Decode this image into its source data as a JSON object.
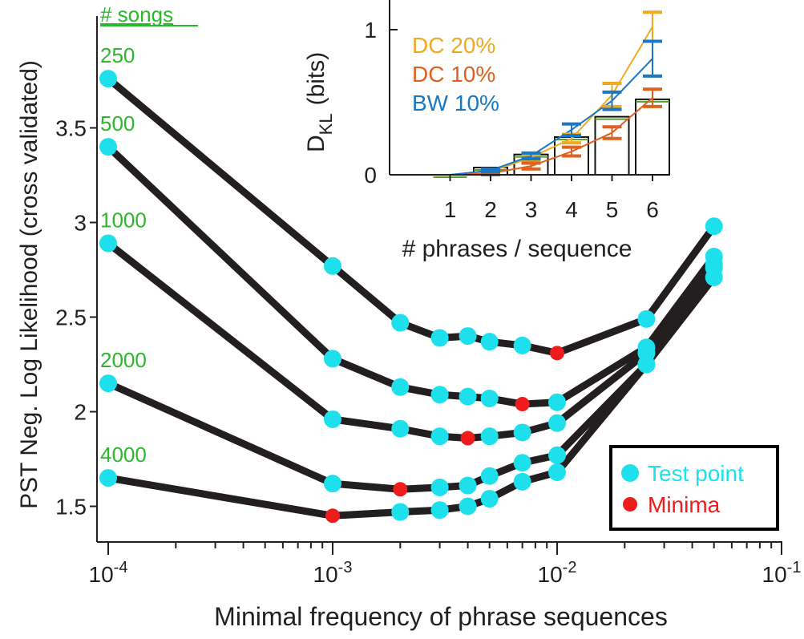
{
  "colors": {
    "line": "#231f20",
    "test_point": "#1ee0ec",
    "minima": "#ee1c1c",
    "song_label": "#2cb82c",
    "dc20": "#f0aa22",
    "dc10": "#e06020",
    "bw10": "#1a78c2",
    "inset_green": "#5aa02a"
  },
  "chart_data": [
    {
      "type": "line",
      "x_scale": "log",
      "xlabel": "Minimal frequency of phrase sequences",
      "ylabel": "PST Neg. Log Likelihood (cross validated)",
      "xlim": [
        0.0001,
        0.1
      ],
      "ylim": [
        1.3,
        4.02
      ],
      "x_ticks": [
        {
          "value": 0.0001,
          "base": "10",
          "exp": "-4"
        },
        {
          "value": 0.001,
          "base": "10",
          "exp": "-3"
        },
        {
          "value": 0.01,
          "base": "10",
          "exp": "-2"
        },
        {
          "value": 0.1,
          "base": "10",
          "exp": "-1"
        }
      ],
      "y_ticks": [
        "1.5",
        "2",
        "2.5",
        "3",
        "3.5"
      ],
      "y_tick_values": [
        1.5,
        2,
        2.5,
        3,
        3.5
      ],
      "series_label_header": "# songs",
      "series": [
        {
          "name": "250",
          "x": [
            0.0001,
            0.001,
            0.002,
            0.003,
            0.004,
            0.005,
            0.007,
            0.01,
            0.025,
            0.05
          ],
          "y": [
            3.76,
            2.77,
            2.47,
            2.39,
            2.4,
            2.37,
            2.35,
            2.31,
            2.49,
            2.98
          ],
          "min_index": 7
        },
        {
          "name": "500",
          "x": [
            0.0001,
            0.001,
            0.002,
            0.003,
            0.004,
            0.005,
            0.007,
            0.01,
            0.025,
            0.05
          ],
          "y": [
            3.4,
            2.28,
            2.13,
            2.09,
            2.08,
            2.07,
            2.04,
            2.05,
            2.34,
            2.82
          ],
          "min_index": 6
        },
        {
          "name": "1000",
          "x": [
            0.0001,
            0.001,
            0.002,
            0.003,
            0.004,
            0.005,
            0.007,
            0.01,
            0.025,
            0.05
          ],
          "y": [
            2.89,
            1.96,
            1.91,
            1.87,
            1.86,
            1.87,
            1.89,
            1.94,
            2.31,
            2.78
          ],
          "min_index": 4
        },
        {
          "name": "2000",
          "x": [
            0.0001,
            0.001,
            0.002,
            0.003,
            0.004,
            0.005,
            0.007,
            0.01,
            0.025,
            0.05
          ],
          "y": [
            2.15,
            1.62,
            1.59,
            1.6,
            1.61,
            1.66,
            1.73,
            1.77,
            2.25,
            2.76
          ],
          "min_index": 2
        },
        {
          "name": "4000",
          "x": [
            0.0001,
            0.001,
            0.002,
            0.003,
            0.004,
            0.005,
            0.007,
            0.01,
            0.025,
            0.05
          ],
          "y": [
            1.65,
            1.45,
            1.47,
            1.48,
            1.5,
            1.54,
            1.63,
            1.68,
            2.25,
            2.71
          ],
          "min_index": 1
        }
      ],
      "legend": {
        "position": "bottom-right",
        "entries": [
          "Test point",
          "Minima"
        ]
      }
    },
    {
      "type": "bar",
      "xlabel": "# phrases / sequence",
      "ylabel_main": "D",
      "ylabel_sub": "KL",
      "ylabel_unit": "(bits)",
      "categories": [
        "1",
        "2",
        "3",
        "4",
        "5",
        "6"
      ],
      "y_ticks": [
        "0",
        "1"
      ],
      "y_tick_values": [
        0,
        1
      ],
      "ylim": [
        0,
        1.2
      ],
      "bar_values": [
        0.0,
        0.05,
        0.14,
        0.26,
        0.4,
        0.52
      ],
      "legend": {
        "position": "top-left",
        "entries": [
          "DC 20%",
          "DC 10%",
          "BW 10%"
        ]
      },
      "series": [
        {
          "name": "DC 20%",
          "values": [
            0.0,
            0.02,
            0.12,
            0.25,
            0.55,
            1.02
          ],
          "err": [
            0.0,
            0.01,
            0.02,
            0.03,
            0.08,
            0.1
          ]
        },
        {
          "name": "DC 10%",
          "values": [
            0.0,
            0.01,
            0.06,
            0.16,
            0.29,
            0.53
          ],
          "err": [
            0.0,
            0.01,
            0.02,
            0.03,
            0.04,
            0.06
          ]
        },
        {
          "name": "BW 10%",
          "values": [
            0.0,
            0.03,
            0.13,
            0.31,
            0.51,
            0.8
          ],
          "err": [
            0.0,
            0.01,
            0.02,
            0.04,
            0.06,
            0.12
          ]
        }
      ]
    }
  ]
}
